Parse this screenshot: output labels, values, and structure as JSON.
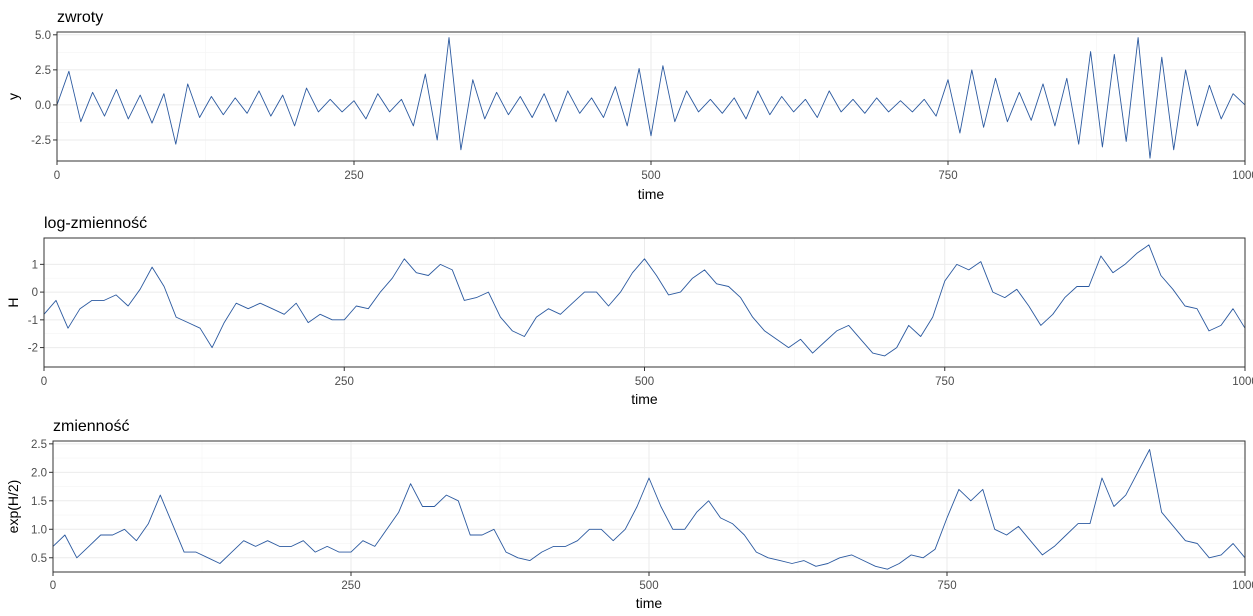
{
  "chart_data": [
    {
      "type": "line",
      "title": "zwroty",
      "xlabel": "time",
      "ylabel": "y",
      "xlim": [
        0,
        1000
      ],
      "ylim": [
        -4.0,
        5.2
      ],
      "xticks": [
        0,
        250,
        500,
        750,
        1000
      ],
      "xtick_labels": [
        "0",
        "250",
        "500",
        "750",
        "1000"
      ],
      "yticks": [
        -2.5,
        0,
        2.5,
        5
      ],
      "ytick_labels": [
        "-2.5",
        "0.0",
        "2.5",
        "5.0"
      ],
      "grid": true,
      "color": "#2c5aa0",
      "series": [
        {
          "x": [
            0,
            10,
            20,
            30,
            40,
            50,
            60,
            70,
            80,
            90,
            100,
            110,
            120,
            130,
            140,
            150,
            160,
            170,
            180,
            190,
            200,
            210,
            220,
            230,
            240,
            250,
            260,
            270,
            280,
            290,
            300,
            310,
            320,
            330,
            340,
            350,
            360,
            370,
            380,
            390,
            400,
            410,
            420,
            430,
            440,
            450,
            460,
            470,
            480,
            490,
            500,
            510,
            520,
            530,
            540,
            550,
            560,
            570,
            580,
            590,
            600,
            610,
            620,
            630,
            640,
            650,
            660,
            670,
            680,
            690,
            700,
            710,
            720,
            730,
            740,
            750,
            760,
            770,
            780,
            790,
            800,
            810,
            820,
            830,
            840,
            850,
            860,
            870,
            880,
            890,
            900,
            910,
            920,
            930,
            940,
            950,
            960,
            970,
            980,
            990,
            1000
          ],
          "values": [
            0.0,
            2.4,
            -1.2,
            0.9,
            -0.8,
            1.1,
            -1.0,
            0.7,
            -1.3,
            0.8,
            -2.8,
            1.5,
            -0.9,
            0.6,
            -0.7,
            0.5,
            -0.6,
            1.0,
            -0.8,
            0.7,
            -1.5,
            1.2,
            -0.5,
            0.4,
            -0.5,
            0.3,
            -1.0,
            0.8,
            -0.5,
            0.4,
            -1.5,
            2.2,
            -2.5,
            4.8,
            -3.2,
            1.8,
            -1.0,
            0.9,
            -0.7,
            0.6,
            -0.9,
            0.8,
            -1.2,
            1.0,
            -0.6,
            0.5,
            -0.9,
            1.3,
            -1.5,
            2.6,
            -2.2,
            2.8,
            -1.2,
            1.0,
            -0.5,
            0.4,
            -0.6,
            0.5,
            -1.0,
            1.0,
            -0.7,
            0.6,
            -0.5,
            0.4,
            -0.9,
            1.0,
            -0.5,
            0.4,
            -0.6,
            0.5,
            -0.5,
            0.3,
            -0.5,
            0.4,
            -0.8,
            1.8,
            -2.0,
            2.5,
            -1.6,
            1.9,
            -1.2,
            0.9,
            -1.1,
            1.5,
            -1.5,
            1.9,
            -2.8,
            3.8,
            -3.0,
            3.6,
            -2.6,
            4.8,
            -3.8,
            3.4,
            -3.2,
            2.5,
            -1.5,
            1.4,
            -1.0,
            0.8,
            0.0
          ]
        }
      ]
    },
    {
      "type": "line",
      "title": "log-zmienność",
      "xlabel": "time",
      "ylabel": "H",
      "xlim": [
        0,
        1000
      ],
      "ylim": [
        -2.7,
        1.95
      ],
      "xticks": [
        0,
        250,
        500,
        750,
        1000
      ],
      "xtick_labels": [
        "0",
        "250",
        "500",
        "750",
        "1000"
      ],
      "yticks": [
        -2,
        -1,
        0,
        1
      ],
      "ytick_labels": [
        "-2",
        "-1",
        "0",
        "1"
      ],
      "grid": true,
      "color": "#2c5aa0",
      "series": [
        {
          "x": [
            0,
            10,
            20,
            30,
            40,
            50,
            60,
            70,
            80,
            90,
            100,
            110,
            120,
            130,
            140,
            150,
            160,
            170,
            180,
            190,
            200,
            210,
            220,
            230,
            240,
            250,
            260,
            270,
            280,
            290,
            300,
            310,
            320,
            330,
            340,
            350,
            360,
            370,
            380,
            390,
            400,
            410,
            420,
            430,
            440,
            450,
            460,
            470,
            480,
            490,
            500,
            510,
            520,
            530,
            540,
            550,
            560,
            570,
            580,
            590,
            600,
            610,
            620,
            630,
            640,
            650,
            660,
            670,
            680,
            690,
            700,
            710,
            720,
            730,
            740,
            750,
            760,
            770,
            780,
            790,
            800,
            810,
            820,
            830,
            840,
            850,
            860,
            870,
            880,
            890,
            900,
            910,
            920,
            930,
            940,
            950,
            960,
            970,
            980,
            990,
            1000
          ],
          "values": [
            -0.8,
            -0.3,
            -1.3,
            -0.6,
            -0.3,
            -0.3,
            -0.1,
            -0.5,
            0.1,
            0.9,
            0.2,
            -0.9,
            -1.1,
            -1.3,
            -2.0,
            -1.1,
            -0.4,
            -0.6,
            -0.4,
            -0.6,
            -0.8,
            -0.4,
            -1.1,
            -0.8,
            -1.0,
            -1.0,
            -0.5,
            -0.6,
            0.0,
            0.5,
            1.2,
            0.7,
            0.6,
            1.0,
            0.8,
            -0.3,
            -0.2,
            0.0,
            -0.9,
            -1.4,
            -1.6,
            -0.9,
            -0.6,
            -0.8,
            -0.4,
            0.0,
            0.0,
            -0.5,
            0.0,
            0.7,
            1.2,
            0.6,
            -0.1,
            0.0,
            0.5,
            0.8,
            0.3,
            0.2,
            -0.2,
            -0.9,
            -1.4,
            -1.7,
            -2.0,
            -1.7,
            -2.2,
            -1.8,
            -1.4,
            -1.2,
            -1.7,
            -2.2,
            -2.3,
            -2.0,
            -1.2,
            -1.6,
            -0.9,
            0.4,
            1.0,
            0.8,
            1.1,
            0.0,
            -0.2,
            0.1,
            -0.5,
            -1.2,
            -0.8,
            -0.2,
            0.2,
            0.2,
            1.3,
            0.7,
            1.0,
            1.4,
            1.7,
            0.6,
            0.1,
            -0.5,
            -0.6,
            -1.4,
            -1.2,
            -0.6,
            -1.3
          ]
        }
      ]
    },
    {
      "type": "line",
      "title": "zmienność",
      "xlabel": "time",
      "ylabel": "exp(H/2)",
      "xlim": [
        0,
        1000
      ],
      "ylim": [
        0.25,
        2.55
      ],
      "xticks": [
        0,
        250,
        500,
        750,
        1000
      ],
      "xtick_labels": [
        "0",
        "250",
        "500",
        "750",
        "1000"
      ],
      "yticks": [
        0.5,
        1.0,
        1.5,
        2.0,
        2.5
      ],
      "ytick_labels": [
        "0.5",
        "1.0",
        "1.5",
        "2.0",
        "2.5"
      ],
      "grid": true,
      "color": "#2c5aa0",
      "series": [
        {
          "x": [
            0,
            10,
            20,
            30,
            40,
            50,
            60,
            70,
            80,
            90,
            100,
            110,
            120,
            130,
            140,
            150,
            160,
            170,
            180,
            190,
            200,
            210,
            220,
            230,
            240,
            250,
            260,
            270,
            280,
            290,
            300,
            310,
            320,
            330,
            340,
            350,
            360,
            370,
            380,
            390,
            400,
            410,
            420,
            430,
            440,
            450,
            460,
            470,
            480,
            490,
            500,
            510,
            520,
            530,
            540,
            550,
            560,
            570,
            580,
            590,
            600,
            610,
            620,
            630,
            640,
            650,
            660,
            670,
            680,
            690,
            700,
            710,
            720,
            730,
            740,
            750,
            760,
            770,
            780,
            790,
            800,
            810,
            820,
            830,
            840,
            850,
            860,
            870,
            880,
            890,
            900,
            910,
            920,
            930,
            940,
            950,
            960,
            970,
            980,
            990,
            1000
          ],
          "values": [
            0.7,
            0.9,
            0.5,
            0.7,
            0.9,
            0.9,
            1.0,
            0.8,
            1.1,
            1.6,
            1.1,
            0.6,
            0.6,
            0.5,
            0.4,
            0.6,
            0.8,
            0.7,
            0.8,
            0.7,
            0.7,
            0.8,
            0.6,
            0.7,
            0.6,
            0.6,
            0.8,
            0.7,
            1.0,
            1.3,
            1.8,
            1.4,
            1.4,
            1.6,
            1.5,
            0.9,
            0.9,
            1.0,
            0.6,
            0.5,
            0.45,
            0.6,
            0.7,
            0.7,
            0.8,
            1.0,
            1.0,
            0.8,
            1.0,
            1.4,
            1.9,
            1.4,
            1.0,
            1.0,
            1.3,
            1.5,
            1.2,
            1.1,
            0.9,
            0.6,
            0.5,
            0.45,
            0.4,
            0.45,
            0.35,
            0.4,
            0.5,
            0.55,
            0.45,
            0.35,
            0.3,
            0.4,
            0.55,
            0.5,
            0.65,
            1.2,
            1.7,
            1.5,
            1.7,
            1.0,
            0.9,
            1.05,
            0.8,
            0.55,
            0.7,
            0.9,
            1.1,
            1.1,
            1.9,
            1.4,
            1.6,
            2.0,
            2.4,
            1.3,
            1.05,
            0.8,
            0.75,
            0.5,
            0.55,
            0.75,
            0.5
          ]
        }
      ]
    }
  ]
}
